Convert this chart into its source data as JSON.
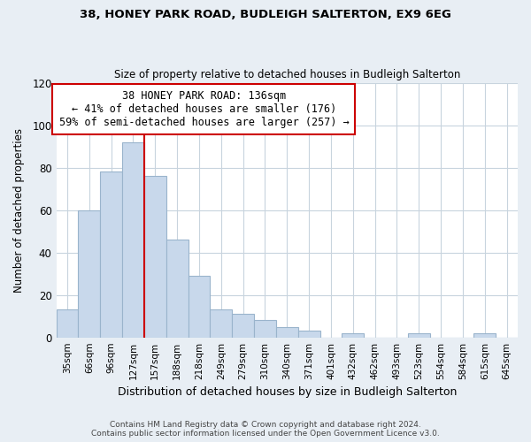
{
  "title1": "38, HONEY PARK ROAD, BUDLEIGH SALTERTON, EX9 6EG",
  "title2": "Size of property relative to detached houses in Budleigh Salterton",
  "xlabel": "Distribution of detached houses by size in Budleigh Salterton",
  "ylabel": "Number of detached properties",
  "bar_labels": [
    "35sqm",
    "66sqm",
    "96sqm",
    "127sqm",
    "157sqm",
    "188sqm",
    "218sqm",
    "249sqm",
    "279sqm",
    "310sqm",
    "340sqm",
    "371sqm",
    "401sqm",
    "432sqm",
    "462sqm",
    "493sqm",
    "523sqm",
    "554sqm",
    "584sqm",
    "615sqm",
    "645sqm"
  ],
  "bar_values": [
    13,
    60,
    78,
    92,
    76,
    46,
    29,
    13,
    11,
    8,
    5,
    3,
    0,
    2,
    0,
    0,
    2,
    0,
    0,
    2,
    0
  ],
  "bar_color": "#c8d8eb",
  "bar_edge_color": "#9ab4cc",
  "marker_label": "38 HONEY PARK ROAD: 136sqm",
  "annotation_line1": "← 41% of detached houses are smaller (176)",
  "annotation_line2": "59% of semi-detached houses are larger (257) →",
  "vline_color": "#cc0000",
  "ylim": [
    0,
    120
  ],
  "yticks": [
    0,
    20,
    40,
    60,
    80,
    100,
    120
  ],
  "footer1": "Contains HM Land Registry data © Crown copyright and database right 2024.",
  "footer2": "Contains public sector information licensed under the Open Government Licence v3.0.",
  "bg_color": "#e8eef4",
  "plot_bg_color": "#ffffff",
  "grid_color": "#c8d4de",
  "annotation_box_color": "#ffffff",
  "annotation_box_edge": "#cc0000"
}
